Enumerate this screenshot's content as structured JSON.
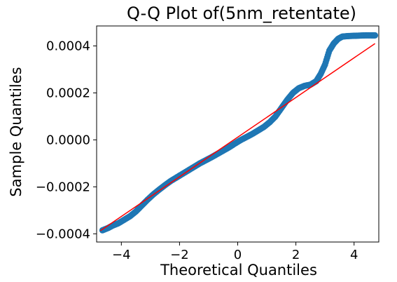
{
  "chart_data": {
    "type": "scatter",
    "title": "Q-Q Plot of(5nm_retentate)",
    "xlabel": "Theoretical Quantiles",
    "ylabel": "Sample Quantiles",
    "xlim": [
      -4.85,
      4.85
    ],
    "ylim": [
      -0.000435,
      0.000485
    ],
    "xticks": [
      -4,
      -2,
      0,
      2,
      4
    ],
    "xtick_labels": [
      "−4",
      "−2",
      "0",
      "2",
      "4"
    ],
    "yticks": [
      -0.0004,
      -0.0002,
      0.0,
      0.0002,
      0.0004
    ],
    "ytick_labels": [
      "−0.0004",
      "−0.0002",
      "0.0000",
      "0.0002",
      "0.0004"
    ],
    "grid": false,
    "legend": "none",
    "series": [
      {
        "kind": "points",
        "color": "#1f77b4",
        "x": [
          -4.65,
          -4.45,
          -4.3,
          -4.1,
          -3.9,
          -3.7,
          -3.5,
          -3.3,
          -3.1,
          -2.9,
          -2.7,
          -2.5,
          -2.3,
          -2.1,
          -1.9,
          -1.7,
          -1.5,
          -1.3,
          -1.1,
          -0.9,
          -0.7,
          -0.5,
          -0.3,
          -0.1,
          0.1,
          0.3,
          0.5,
          0.7,
          0.9,
          1.1,
          1.3,
          1.5,
          1.7,
          1.9,
          2.1,
          2.3,
          2.5,
          2.7,
          2.85,
          3.0,
          3.15,
          3.3,
          3.45,
          3.6,
          3.8,
          4.0,
          4.2,
          4.4,
          4.6,
          4.72
        ],
        "y": [
          -0.000385,
          -0.000375,
          -0.000365,
          -0.000355,
          -0.00034,
          -0.000325,
          -0.000305,
          -0.00028,
          -0.000255,
          -0.000232,
          -0.000212,
          -0.000193,
          -0.000175,
          -0.00016,
          -0.000145,
          -0.00013,
          -0.000115,
          -0.0001,
          -8.7e-05,
          -7.4e-05,
          -6e-05,
          -4.6e-05,
          -3.2e-05,
          -1.6e-05,
          -1e-06,
          1.2e-05,
          2.5e-05,
          4e-05,
          5.5e-05,
          7.5e-05,
          0.0001,
          0.000135,
          0.00017,
          0.0002,
          0.00022,
          0.00023,
          0.000235,
          0.00025,
          0.00028,
          0.00032,
          0.00038,
          0.00041,
          0.00043,
          0.00044,
          0.000442,
          0.000443,
          0.000444,
          0.000445,
          0.000445,
          0.000445
        ]
      },
      {
        "kind": "line",
        "color": "#ff0000",
        "x": [
          -4.72,
          4.72
        ],
        "y": [
          -0.000387,
          0.00041
        ]
      }
    ]
  }
}
